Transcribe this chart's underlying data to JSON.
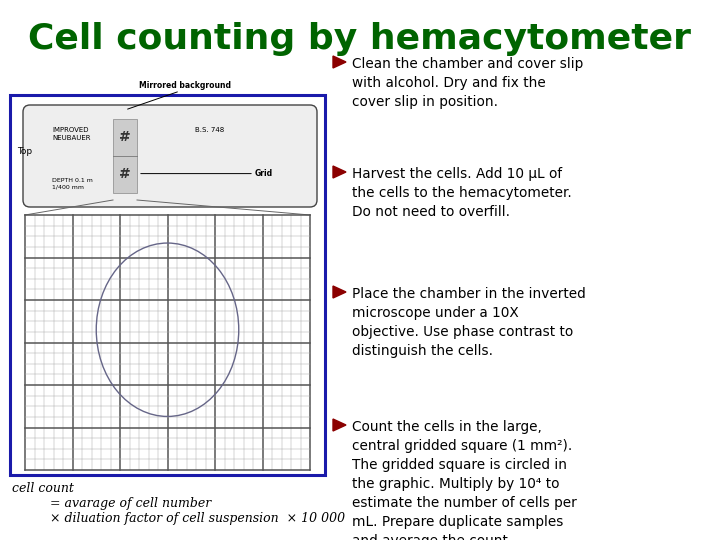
{
  "title": "Cell counting by hemacytometer",
  "title_color": "#006400",
  "title_fontsize": 26,
  "bg_color": "#ffffff",
  "bullet_color": "#8b0000",
  "bullet_points": [
    "Clean the chamber and cover slip\nwith alcohol. Dry and fix the\ncover slip in position.",
    "Harvest the cells. Add 10 μL of\nthe cells to the hemacytometer.\nDo not need to overfill.",
    "Place the chamber in the inverted\nmicroscope under a 10X\nobjective. Use phase contrast to\ndistinguish the cells.",
    "Count the cells in the large,\ncentral gridded square (1 mm²).\nThe gridded square is circled in\nthe graphic. Multiply by 10⁴ to\nestimate the number of cells per\nmL. Prepare duplicate samples\nand average the count."
  ],
  "formula_line1": "cell count",
  "formula_line2": "= avarage of cell number",
  "formula_line3": "× diluation factor of cell suspension  × 10 000",
  "diagram_box_color": "#1a1aaa",
  "grid_color_heavy": "#555555",
  "grid_color_light": "#aaaaaa"
}
